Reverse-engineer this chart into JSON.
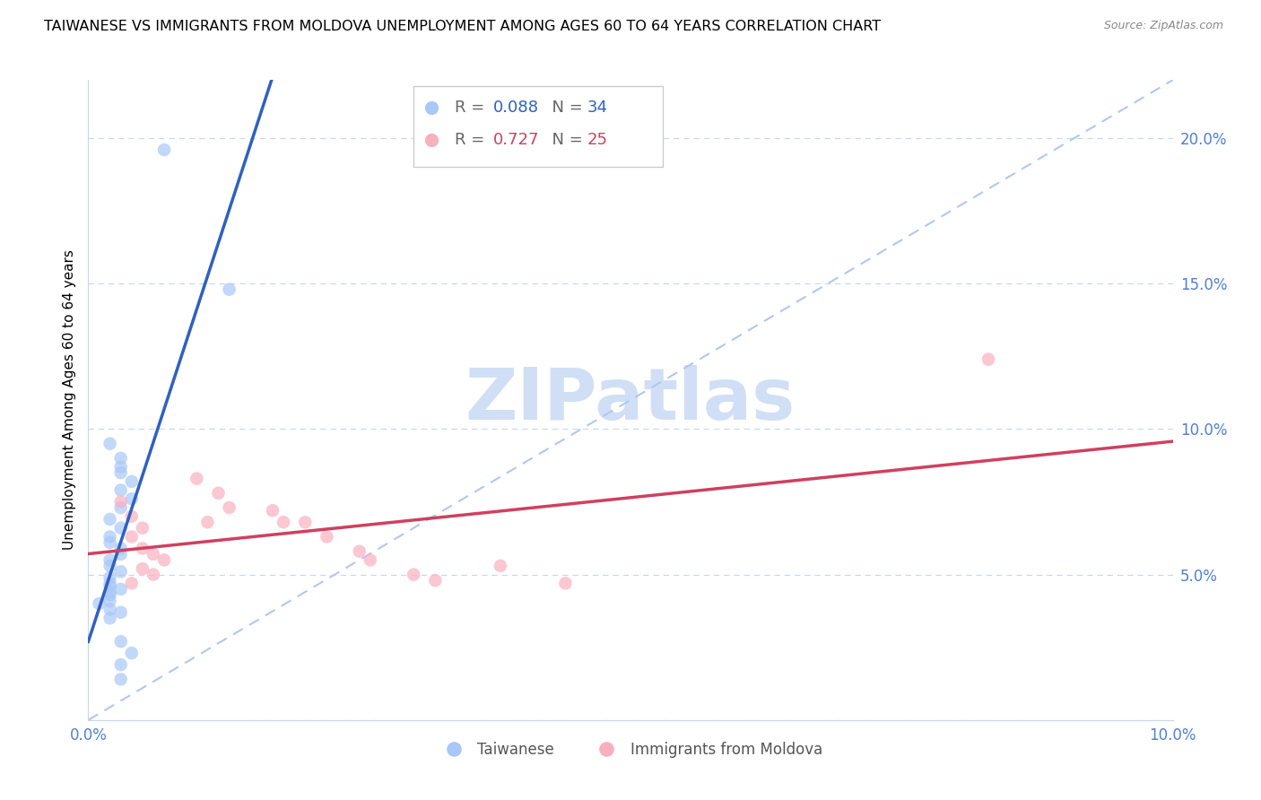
{
  "title": "TAIWANESE VS IMMIGRANTS FROM MOLDOVA UNEMPLOYMENT AMONG AGES 60 TO 64 YEARS CORRELATION CHART",
  "source": "Source: ZipAtlas.com",
  "ylabel": "Unemployment Among Ages 60 to 64 years",
  "xlim": [
    0,
    0.1
  ],
  "ylim": [
    0,
    0.22
  ],
  "blue_color": "#a8c8f8",
  "blue_line_color": "#3060c0",
  "pink_color": "#f8b0c0",
  "pink_line_color": "#d04060",
  "dashed_line_color": "#b0c8f0",
  "tick_color": "#5080d0",
  "grid_color": "#c8d8ec",
  "background_color": "#ffffff",
  "watermark_color": "#d0dff5",
  "legend_r1": "0.088",
  "legend_n1": "34",
  "legend_r2": "0.727",
  "legend_n2": "25",
  "tw_x": [
    0.007,
    0.013,
    0.002,
    0.003,
    0.003,
    0.003,
    0.004,
    0.003,
    0.004,
    0.003,
    0.002,
    0.003,
    0.002,
    0.002,
    0.003,
    0.003,
    0.002,
    0.002,
    0.003,
    0.002,
    0.002,
    0.002,
    0.003,
    0.002,
    0.002,
    0.002,
    0.001,
    0.002,
    0.003,
    0.002,
    0.003,
    0.004,
    0.003,
    0.003
  ],
  "tw_y": [
    0.196,
    0.148,
    0.095,
    0.09,
    0.087,
    0.085,
    0.082,
    0.079,
    0.076,
    0.073,
    0.069,
    0.066,
    0.063,
    0.061,
    0.059,
    0.057,
    0.055,
    0.053,
    0.051,
    0.049,
    0.047,
    0.046,
    0.045,
    0.044,
    0.043,
    0.041,
    0.04,
    0.038,
    0.037,
    0.035,
    0.027,
    0.023,
    0.019,
    0.014
  ],
  "mo_x": [
    0.003,
    0.004,
    0.005,
    0.004,
    0.005,
    0.006,
    0.007,
    0.005,
    0.006,
    0.004,
    0.01,
    0.012,
    0.013,
    0.011,
    0.017,
    0.018,
    0.02,
    0.022,
    0.025,
    0.026,
    0.03,
    0.032,
    0.038,
    0.044,
    0.083
  ],
  "mo_y": [
    0.075,
    0.07,
    0.066,
    0.063,
    0.059,
    0.057,
    0.055,
    0.052,
    0.05,
    0.047,
    0.083,
    0.078,
    0.073,
    0.068,
    0.072,
    0.068,
    0.068,
    0.063,
    0.058,
    0.055,
    0.05,
    0.048,
    0.053,
    0.047,
    0.124
  ],
  "title_fontsize": 11.5,
  "source_fontsize": 9,
  "tick_fontsize": 12,
  "ylabel_fontsize": 11
}
